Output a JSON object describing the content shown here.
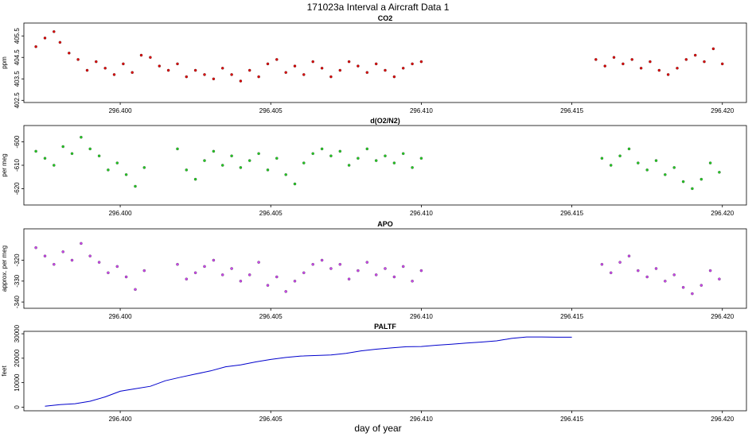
{
  "chart_data": {
    "type": "scatter",
    "title": "171023a   Interval a Aircraft Data 1",
    "xlabel": "day of year",
    "xlim": [
      296.3968,
      296.4208
    ],
    "x_ticks": [
      {
        "value": 296.4,
        "label": "296.400"
      },
      {
        "value": 296.405,
        "label": "296.405"
      },
      {
        "value": 296.41,
        "label": "296.410"
      },
      {
        "value": 296.415,
        "label": "296.415"
      },
      {
        "value": 296.42,
        "label": "296.420"
      }
    ],
    "panels": [
      {
        "name": "CO2",
        "title": "CO2",
        "ylabel": "ppm",
        "type": "scatter",
        "ylim": [
          402.4,
          406.1
        ],
        "y_ticks": [
          {
            "value": 402.5,
            "label": "402.5"
          },
          {
            "value": 403.5,
            "label": "403.5"
          },
          {
            "value": 404.5,
            "label": "404.5"
          },
          {
            "value": 405.5,
            "label": "405.5"
          }
        ],
        "point_color": "#e00000",
        "points": [
          [
            296.3972,
            405.0
          ],
          [
            296.3975,
            405.4
          ],
          [
            296.3978,
            405.7
          ],
          [
            296.398,
            405.2
          ],
          [
            296.3983,
            404.7
          ],
          [
            296.3986,
            404.4
          ],
          [
            296.3989,
            403.9
          ],
          [
            296.3992,
            404.3
          ],
          [
            296.3995,
            404.0
          ],
          [
            296.3998,
            403.7
          ],
          [
            296.4001,
            404.2
          ],
          [
            296.4004,
            403.8
          ],
          [
            296.4007,
            404.6
          ],
          [
            296.401,
            404.5
          ],
          [
            296.4013,
            404.1
          ],
          [
            296.4016,
            403.9
          ],
          [
            296.4019,
            404.2
          ],
          [
            296.4022,
            403.6
          ],
          [
            296.4025,
            403.9
          ],
          [
            296.4028,
            403.7
          ],
          [
            296.4031,
            403.5
          ],
          [
            296.4034,
            404.0
          ],
          [
            296.4037,
            403.7
          ],
          [
            296.404,
            403.4
          ],
          [
            296.4043,
            403.9
          ],
          [
            296.4046,
            403.6
          ],
          [
            296.4049,
            404.2
          ],
          [
            296.4052,
            404.4
          ],
          [
            296.4055,
            403.8
          ],
          [
            296.4058,
            404.1
          ],
          [
            296.4061,
            403.7
          ],
          [
            296.4064,
            404.3
          ],
          [
            296.4067,
            404.0
          ],
          [
            296.407,
            403.6
          ],
          [
            296.4073,
            403.9
          ],
          [
            296.4076,
            404.3
          ],
          [
            296.4079,
            404.1
          ],
          [
            296.4082,
            403.8
          ],
          [
            296.4085,
            404.2
          ],
          [
            296.4088,
            403.9
          ],
          [
            296.4091,
            403.6
          ],
          [
            296.4094,
            404.0
          ],
          [
            296.4097,
            404.2
          ],
          [
            296.41,
            404.3
          ],
          [
            296.4158,
            404.4
          ],
          [
            296.4161,
            404.1
          ],
          [
            296.4164,
            404.5
          ],
          [
            296.4167,
            404.2
          ],
          [
            296.417,
            404.4
          ],
          [
            296.4173,
            404.0
          ],
          [
            296.4176,
            404.3
          ],
          [
            296.4179,
            403.9
          ],
          [
            296.4182,
            403.7
          ],
          [
            296.4185,
            404.0
          ],
          [
            296.4188,
            404.4
          ],
          [
            296.4191,
            404.6
          ],
          [
            296.4194,
            404.3
          ],
          [
            296.4197,
            404.9
          ],
          [
            296.42,
            404.2
          ]
        ]
      },
      {
        "name": "dO2N2",
        "title": "d(O2/N2)",
        "ylabel": "per meg",
        "type": "scatter",
        "ylim": [
          -627,
          -593
        ],
        "y_ticks": [
          {
            "value": -600,
            "label": "-600"
          },
          {
            "value": -610,
            "label": "-610"
          },
          {
            "value": -620,
            "label": "-620"
          }
        ],
        "point_color": "#22cc22",
        "points": [
          [
            296.3972,
            -604
          ],
          [
            296.3975,
            -607
          ],
          [
            296.3978,
            -610
          ],
          [
            296.3981,
            -602
          ],
          [
            296.3984,
            -605
          ],
          [
            296.3987,
            -598
          ],
          [
            296.399,
            -603
          ],
          [
            296.3993,
            -606
          ],
          [
            296.3996,
            -612
          ],
          [
            296.3999,
            -609
          ],
          [
            296.4002,
            -614
          ],
          [
            296.4005,
            -619
          ],
          [
            296.4008,
            -611
          ],
          [
            296.4019,
            -603
          ],
          [
            296.4022,
            -612
          ],
          [
            296.4025,
            -616
          ],
          [
            296.4028,
            -608
          ],
          [
            296.4031,
            -604
          ],
          [
            296.4034,
            -610
          ],
          [
            296.4037,
            -606
          ],
          [
            296.404,
            -611
          ],
          [
            296.4043,
            -608
          ],
          [
            296.4046,
            -605
          ],
          [
            296.4049,
            -612
          ],
          [
            296.4052,
            -607
          ],
          [
            296.4055,
            -614
          ],
          [
            296.4058,
            -618
          ],
          [
            296.4061,
            -609
          ],
          [
            296.4064,
            -605
          ],
          [
            296.4067,
            -603
          ],
          [
            296.407,
            -606
          ],
          [
            296.4073,
            -604
          ],
          [
            296.4076,
            -610
          ],
          [
            296.4079,
            -607
          ],
          [
            296.4082,
            -603
          ],
          [
            296.4085,
            -608
          ],
          [
            296.4088,
            -606
          ],
          [
            296.4091,
            -609
          ],
          [
            296.4094,
            -605
          ],
          [
            296.4097,
            -611
          ],
          [
            296.41,
            -607
          ],
          [
            296.416,
            -607
          ],
          [
            296.4163,
            -610
          ],
          [
            296.4166,
            -606
          ],
          [
            296.4169,
            -603
          ],
          [
            296.4172,
            -609
          ],
          [
            296.4175,
            -612
          ],
          [
            296.4178,
            -608
          ],
          [
            296.4181,
            -614
          ],
          [
            296.4184,
            -611
          ],
          [
            296.4187,
            -617
          ],
          [
            296.419,
            -620
          ],
          [
            296.4193,
            -616
          ],
          [
            296.4196,
            -609
          ],
          [
            296.4199,
            -613
          ]
        ]
      },
      {
        "name": "APO",
        "title": "APO",
        "ylabel": "approx. per meg",
        "type": "scatter",
        "ylim": [
          -343,
          -305
        ],
        "y_ticks": [
          {
            "value": -320,
            "label": "-320"
          },
          {
            "value": -330,
            "label": "-330"
          },
          {
            "value": -340,
            "label": "-340"
          }
        ],
        "point_color": "#cc44ee",
        "points": [
          [
            296.3972,
            -314
          ],
          [
            296.3975,
            -318
          ],
          [
            296.3978,
            -322
          ],
          [
            296.3981,
            -316
          ],
          [
            296.3984,
            -320
          ],
          [
            296.3987,
            -312
          ],
          [
            296.399,
            -318
          ],
          [
            296.3993,
            -321
          ],
          [
            296.3996,
            -326
          ],
          [
            296.3999,
            -323
          ],
          [
            296.4002,
            -328
          ],
          [
            296.4005,
            -334
          ],
          [
            296.4008,
            -325
          ],
          [
            296.4019,
            -322
          ],
          [
            296.4022,
            -329
          ],
          [
            296.4025,
            -326
          ],
          [
            296.4028,
            -323
          ],
          [
            296.4031,
            -320
          ],
          [
            296.4034,
            -327
          ],
          [
            296.4037,
            -324
          ],
          [
            296.404,
            -330
          ],
          [
            296.4043,
            -327
          ],
          [
            296.4046,
            -321
          ],
          [
            296.4049,
            -332
          ],
          [
            296.4052,
            -328
          ],
          [
            296.4055,
            -335
          ],
          [
            296.4058,
            -330
          ],
          [
            296.4061,
            -326
          ],
          [
            296.4064,
            -322
          ],
          [
            296.4067,
            -320
          ],
          [
            296.407,
            -324
          ],
          [
            296.4073,
            -322
          ],
          [
            296.4076,
            -329
          ],
          [
            296.4079,
            -325
          ],
          [
            296.4082,
            -321
          ],
          [
            296.4085,
            -327
          ],
          [
            296.4088,
            -324
          ],
          [
            296.4091,
            -328
          ],
          [
            296.4094,
            -323
          ],
          [
            296.4097,
            -330
          ],
          [
            296.41,
            -325
          ],
          [
            296.416,
            -322
          ],
          [
            296.4163,
            -326
          ],
          [
            296.4166,
            -321
          ],
          [
            296.4169,
            -318
          ],
          [
            296.4172,
            -325
          ],
          [
            296.4175,
            -328
          ],
          [
            296.4178,
            -324
          ],
          [
            296.4181,
            -330
          ],
          [
            296.4184,
            -327
          ],
          [
            296.4187,
            -333
          ],
          [
            296.419,
            -336
          ],
          [
            296.4193,
            -332
          ],
          [
            296.4196,
            -325
          ],
          [
            296.4199,
            -329
          ]
        ]
      },
      {
        "name": "PALTF",
        "title": "PALTF",
        "ylabel": "feet",
        "type": "line",
        "ylim": [
          -1500,
          31000
        ],
        "y_ticks": [
          {
            "value": 0,
            "label": "0"
          },
          {
            "value": 10000,
            "label": "10000"
          },
          {
            "value": 20000,
            "label": "20000"
          },
          {
            "value": 30000,
            "label": "30000"
          }
        ],
        "line_color": "#0000cc",
        "points": [
          [
            296.3975,
            400
          ],
          [
            296.398,
            1000
          ],
          [
            296.3985,
            1400
          ],
          [
            296.399,
            2400
          ],
          [
            296.3995,
            4200
          ],
          [
            296.4,
            6500
          ],
          [
            296.4005,
            7500
          ],
          [
            296.401,
            8500
          ],
          [
            296.4015,
            10800
          ],
          [
            296.402,
            12200
          ],
          [
            296.4025,
            13500
          ],
          [
            296.403,
            14800
          ],
          [
            296.4035,
            16500
          ],
          [
            296.404,
            17300
          ],
          [
            296.4045,
            18500
          ],
          [
            296.405,
            19500
          ],
          [
            296.4055,
            20300
          ],
          [
            296.406,
            20900
          ],
          [
            296.407,
            21300
          ],
          [
            296.4075,
            22000
          ],
          [
            296.408,
            23000
          ],
          [
            296.4085,
            23700
          ],
          [
            296.409,
            24200
          ],
          [
            296.4095,
            24700
          ],
          [
            296.41,
            24800
          ],
          [
            296.4105,
            25300
          ],
          [
            296.411,
            25700
          ],
          [
            296.4115,
            26200
          ],
          [
            296.412,
            26600
          ],
          [
            296.4125,
            27100
          ],
          [
            296.413,
            28100
          ],
          [
            296.4135,
            28700
          ],
          [
            296.414,
            28700
          ],
          [
            296.4145,
            28600
          ],
          [
            296.415,
            28600
          ]
        ]
      }
    ]
  }
}
